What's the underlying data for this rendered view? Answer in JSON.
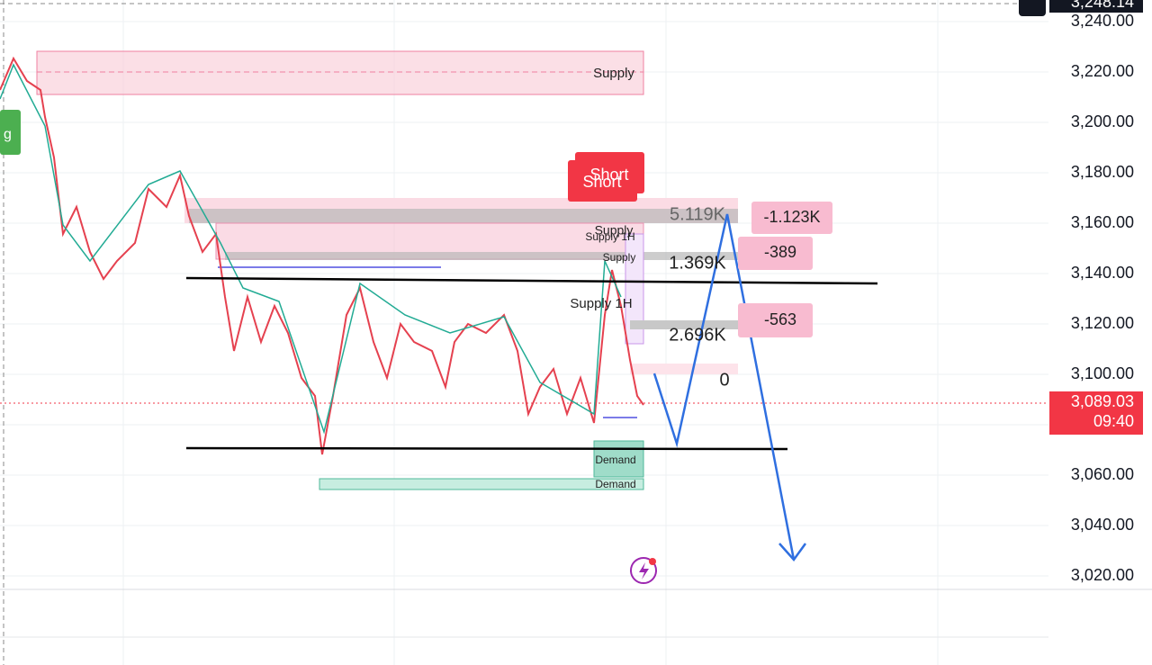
{
  "price_axis": {
    "labels": [
      "3,248.14",
      "3,240.00",
      "3,220.00",
      "3,200.00",
      "3,180.00",
      "3,160.00",
      "3,140.00",
      "3,120.00",
      "3,100.00",
      "3,060.00",
      "3,040.00",
      "3,020.00"
    ]
  },
  "current_price": {
    "price": "3,089.03",
    "time": "09:40"
  },
  "zones": [
    "Supply",
    "Supply",
    "Supply 1H",
    "Supply",
    "Supply 1H",
    "Demand",
    "Demand"
  ],
  "volume_labels": [
    "5.119K",
    "1.369K",
    "2.696K",
    "0"
  ],
  "delta_labels": [
    "-1.123K",
    "-389",
    "-563"
  ],
  "signal": "Short",
  "side_tag": "g"
}
